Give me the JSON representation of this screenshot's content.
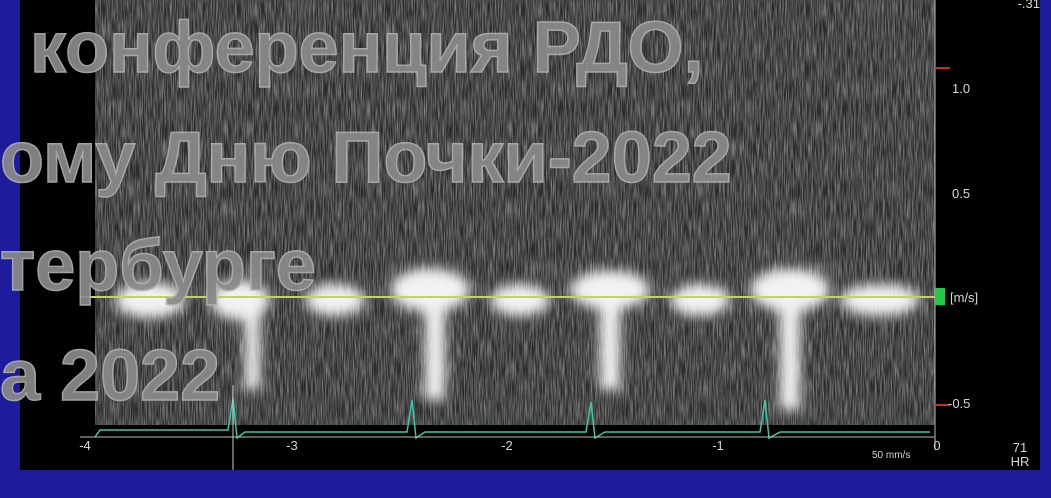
{
  "watermark": [
    "конференция РДО,",
    "ому Дню Почки-2022",
    "тербурге",
    "а 2022"
  ],
  "scale": {
    "top": "-.31",
    "labels": [
      "1.0",
      "0.5",
      "[m/s]",
      "-0.5"
    ]
  },
  "time_axis": {
    "labels": [
      "-4",
      "-3",
      "-2",
      "-1",
      "0"
    ],
    "speed": "50 mm/s"
  },
  "heart_rate": {
    "value": "71",
    "label": "HR"
  }
}
